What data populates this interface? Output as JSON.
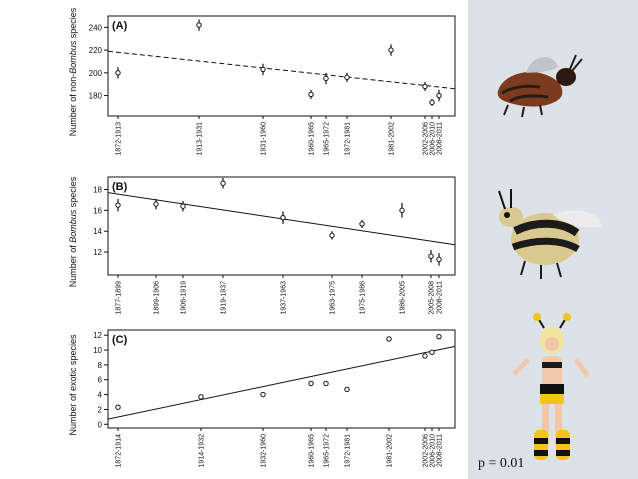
{
  "p_value_text": "p = 0.01",
  "images": {
    "top": "mason-bee-illustration",
    "middle": "bumblebee-illustration",
    "bottom": "bee-costume-woman-illustration"
  },
  "colors": {
    "ink": "#111111",
    "sidebar": "#dde2e9"
  },
  "chart_data": [
    {
      "type": "scatter",
      "panel_label": "(A)",
      "ylabel_parts": [
        "Number of non-",
        "Bombus",
        " species"
      ],
      "ylim": [
        162,
        250
      ],
      "yticks": [
        180,
        200,
        220,
        240
      ],
      "xlim": [
        1872,
        2011
      ],
      "tick_labels": [
        "1872-1913",
        "1913-1931",
        "1931-1960",
        "1960-1965",
        "1965-1972",
        "1972-1981",
        "1981-2002",
        "2002-2006",
        "2006-2010",
        "2008-2011"
      ],
      "trend": {
        "style": "dashed",
        "y_start": 219,
        "y_end": 186
      },
      "points": [
        {
          "label": "1872-1913",
          "x": 1872,
          "y": 200,
          "err": 5
        },
        {
          "label": "1913-1931",
          "x": 1900,
          "y": 242,
          "err": 5
        },
        {
          "label": "1931-1960",
          "x": 1920,
          "y": 203,
          "err": 5
        },
        {
          "label": "1960-1965",
          "x": 1936,
          "y": 181,
          "err": 4
        },
        {
          "label": "1965-1972",
          "x": 1942,
          "y": 195,
          "err": 5
        },
        {
          "label": "1972-1981",
          "x": 1950,
          "y": 196,
          "err": 4
        },
        {
          "label": "1981-2002",
          "x": 1964,
          "y": 220,
          "err": 5
        },
        {
          "label": "2002-2006",
          "x": 2000,
          "y": 188,
          "err": 4
        },
        {
          "label": "2006-2010",
          "x": 2004,
          "y": 174,
          "err": 3
        },
        {
          "label": "2008-2011",
          "x": 2008,
          "y": 180,
          "err": 5
        }
      ]
    },
    {
      "type": "scatter",
      "panel_label": "(B)",
      "ylabel_parts": [
        "Number of ",
        "Bombus",
        " species"
      ],
      "ylim": [
        9.8,
        19.2
      ],
      "yticks": [
        12,
        14,
        16,
        18
      ],
      "xlim": [
        1877,
        2011
      ],
      "tick_labels": [
        "1877-1899",
        "1899-1906",
        "1906-1919",
        "1919-1937",
        "1937-1963",
        "1963-1975",
        "1975-1986",
        "1986-2005",
        "2005-2008",
        "2008-2011"
      ],
      "trend": {
        "style": "solid",
        "y_start": 17.7,
        "y_end": 12.7
      },
      "points": [
        {
          "label": "1877-1899",
          "x": 1877,
          "y": 16.5,
          "err": 0.6
        },
        {
          "label": "1899-1906",
          "x": 1889,
          "y": 16.6,
          "err": 0.5
        },
        {
          "label": "1906-1919",
          "x": 1897,
          "y": 16.4,
          "err": 0.5
        },
        {
          "label": "1919-1937",
          "x": 1910,
          "y": 18.6,
          "err": 0.5
        },
        {
          "label": "1937-1963",
          "x": 1928,
          "y": 15.3,
          "err": 0.6
        },
        {
          "label": "1963-1975",
          "x": 1945,
          "y": 13.6,
          "err": 0.4
        },
        {
          "label": "1975-1986",
          "x": 1954,
          "y": 14.7,
          "err": 0.4
        },
        {
          "label": "1986-2005",
          "x": 1966,
          "y": 16.0,
          "err": 0.7
        },
        {
          "label": "2005-2008",
          "x": 1977,
          "y": 11.6,
          "err": 0.6
        },
        {
          "label": "2008-2011",
          "x": 1980,
          "y": 11.3,
          "err": 0.6
        }
      ]
    },
    {
      "type": "scatter",
      "panel_label": "(C)",
      "ylabel_parts": [
        "Number of exotic species",
        "",
        ""
      ],
      "ylim": [
        -0.5,
        12.7
      ],
      "yticks": [
        0,
        2,
        4,
        6,
        8,
        10,
        12
      ],
      "xlim": [
        1872,
        2011
      ],
      "tick_labels": [
        "1872-1914",
        "1914-1932",
        "1932-1960",
        "1960-1965",
        "1965-1972",
        "1972-1981",
        "1981-2002",
        "2002-2006",
        "2006-2010",
        "2008-2011"
      ],
      "trend": {
        "style": "solid",
        "y_start": 0.7,
        "y_end": 10.5
      },
      "points": [
        {
          "label": "1872-1914",
          "x": 1872,
          "y": 2.3
        },
        {
          "label": "1914-1932",
          "x": 1900,
          "y": 3.7
        },
        {
          "label": "1932-1960",
          "x": 1920,
          "y": 4.0
        },
        {
          "label": "1960-1965",
          "x": 1936,
          "y": 5.5
        },
        {
          "label": "1965-1972",
          "x": 1942,
          "y": 5.5
        },
        {
          "label": "1972-1981",
          "x": 1950,
          "y": 4.7
        },
        {
          "label": "1981-2002",
          "x": 1964,
          "y": 11.5
        },
        {
          "label": "2002-2006",
          "x": 2000,
          "y": 9.2
        },
        {
          "label": "2006-2010",
          "x": 2004,
          "y": 9.7
        },
        {
          "label": "2008-2011",
          "x": 2008,
          "y": 11.8
        }
      ]
    }
  ]
}
